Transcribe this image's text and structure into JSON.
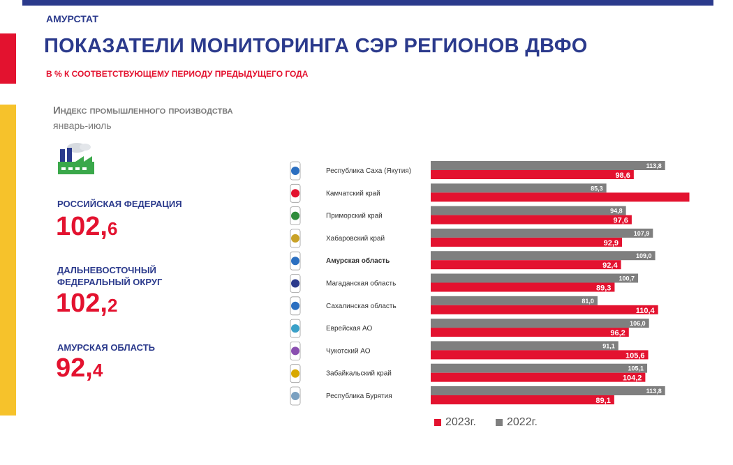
{
  "header": {
    "brand": "АМУРСТАТ",
    "title": "ПОКАЗАТЕЛИ МОНИТОРИНГА СЭР РЕГИОНОВ ДВФО",
    "subtitle": "В % К СООТВЕТСТВУЮЩЕМУ ПЕРИОДУ ПРЕДЫДУЩЕГО ГОДА"
  },
  "indicator": {
    "title": "Индекс промышленного производства",
    "period": "январь-июль"
  },
  "summary": [
    {
      "label": "РОССИЙСКАЯ ФЕДЕРАЦИЯ",
      "int": "102,",
      "dec": "6"
    },
    {
      "label": "ДАЛЬНЕВОСТОЧНЫЙ ФЕДЕРАЛЬНЫЙ ОКРУГ",
      "int": "102,",
      "dec": "2"
    },
    {
      "label": "АМУРСКАЯ ОБЛАСТЬ",
      "int": "92,",
      "dec": "4"
    }
  ],
  "legend": {
    "s2023": "2023г.",
    "s2022": "2022г."
  },
  "colors": {
    "s2023": "#e3122f",
    "s2022": "#7f7f7f",
    "accent": "#2b3a8c"
  },
  "chart_data": {
    "type": "bar",
    "orientation": "horizontal",
    "categories": [
      "Республика Саха (Якутия)",
      "Камчатский край",
      "Приморский край",
      "Хабаровский край",
      "Амурская область",
      "Магаданская область",
      "Сахалинская область",
      "Еврейская АО",
      "Чукотский АО",
      "Забайкальский край",
      "Республика Бурятия"
    ],
    "highlight": "Амурская область",
    "series": [
      {
        "name": "2022г.",
        "values": [
          113.8,
          85.3,
          94.8,
          107.9,
          109.0,
          100.7,
          81.0,
          106.0,
          91.1,
          105.1,
          113.8
        ],
        "labels": [
          "113,8",
          "85,3",
          "94,8",
          "107,9",
          "109,0",
          "100,7",
          "81,0",
          "106,0",
          "91,1",
          "105,1",
          "113,8"
        ]
      },
      {
        "name": "2023г.",
        "values": [
          98.6,
          125.6,
          97.6,
          92.9,
          92.4,
          89.3,
          110.4,
          96.2,
          105.6,
          104.2,
          89.1
        ],
        "labels": [
          "98,6",
          "",
          "97,6",
          "92,9",
          "92,4",
          "89,3",
          "110,4",
          "96,2",
          "105,6",
          "104,2",
          "89,1"
        ]
      }
    ]
  }
}
